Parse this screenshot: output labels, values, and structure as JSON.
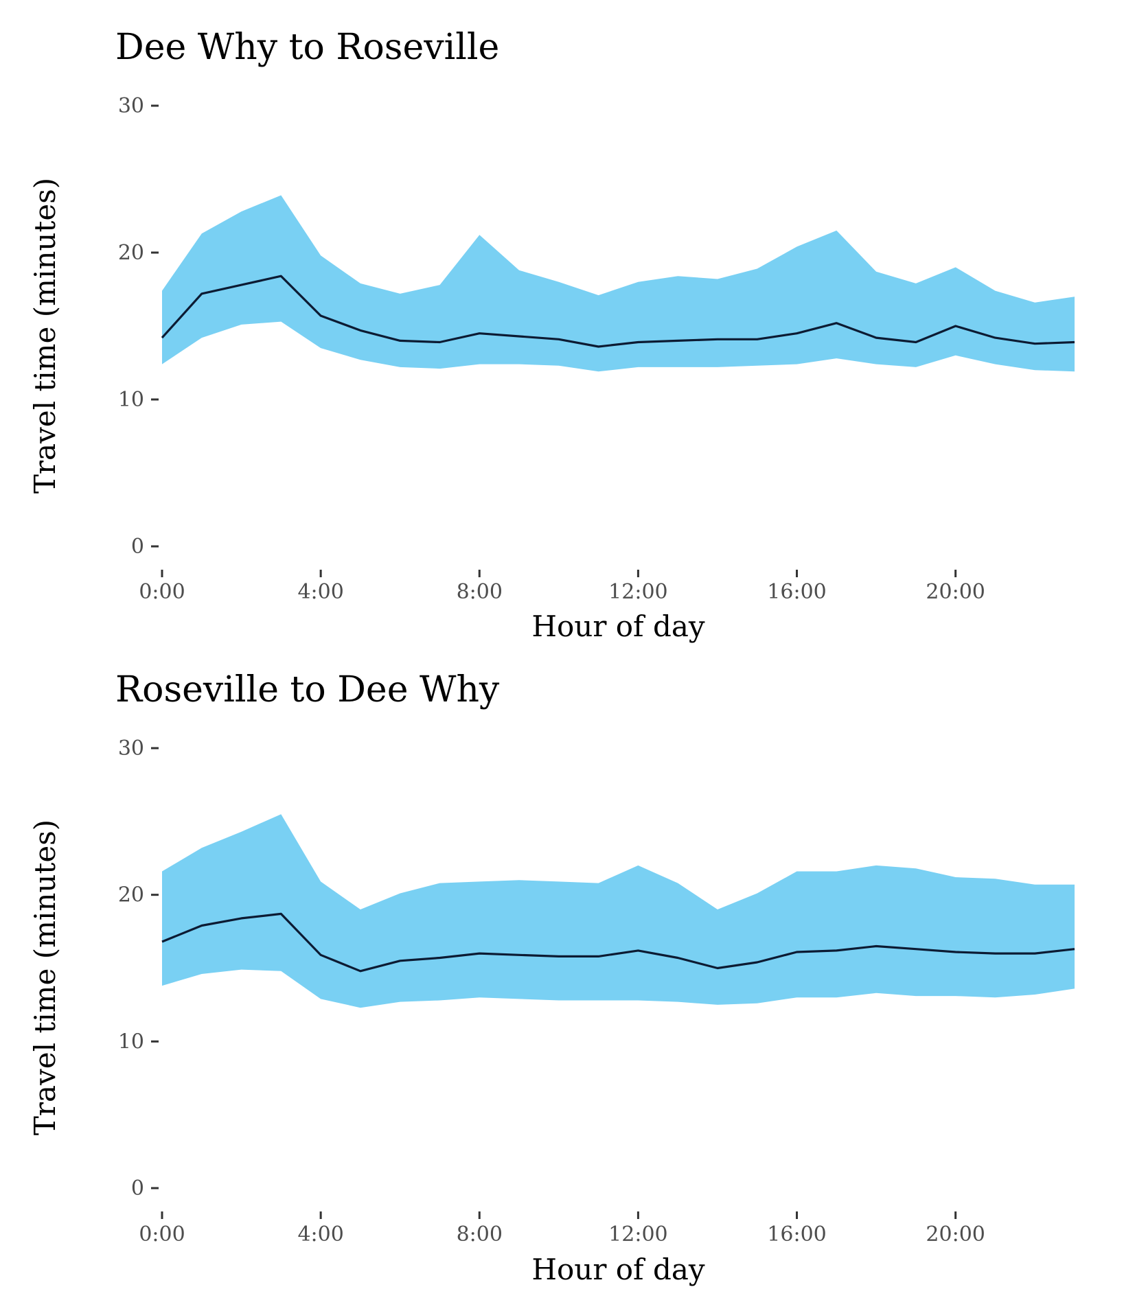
{
  "chart_data": [
    {
      "type": "area",
      "title": "Dee Why to Roseville",
      "xlabel": "Hour of day",
      "ylabel": "Travel time (minutes)",
      "x": [
        0,
        1,
        2,
        3,
        4,
        5,
        6,
        7,
        8,
        9,
        10,
        11,
        12,
        13,
        14,
        15,
        16,
        17,
        18,
        19,
        20,
        21,
        22,
        23
      ],
      "x_ticks": [
        {
          "value": 0,
          "label": "0:00"
        },
        {
          "value": 4,
          "label": "4:00"
        },
        {
          "value": 8,
          "label": "8:00"
        },
        {
          "value": 12,
          "label": "12:00"
        },
        {
          "value": 16,
          "label": "16:00"
        },
        {
          "value": 20,
          "label": "20:00"
        }
      ],
      "y_ticks": [
        {
          "value": 0,
          "label": "0"
        },
        {
          "value": 10,
          "label": "10"
        },
        {
          "value": 20,
          "label": "20"
        },
        {
          "value": 30,
          "label": "30"
        }
      ],
      "xlim": [
        0,
        23
      ],
      "ylim": [
        0,
        30
      ],
      "grid": false,
      "series": [
        {
          "role": "median",
          "values": [
            14.2,
            17.2,
            17.8,
            18.4,
            15.7,
            14.7,
            14.0,
            13.9,
            14.5,
            14.3,
            14.1,
            13.6,
            13.9,
            14.0,
            14.1,
            14.1,
            14.5,
            15.2,
            14.2,
            13.9,
            15.0,
            14.2,
            13.8,
            13.9
          ]
        },
        {
          "role": "upper",
          "values": [
            17.4,
            21.3,
            22.8,
            23.9,
            19.8,
            17.9,
            17.2,
            17.8,
            21.2,
            18.8,
            18.0,
            17.1,
            18.0,
            18.4,
            18.2,
            18.9,
            20.4,
            21.5,
            18.7,
            17.9,
            19.0,
            17.4,
            16.6,
            17.0
          ]
        },
        {
          "role": "lower",
          "values": [
            12.4,
            14.2,
            15.1,
            15.3,
            13.5,
            12.7,
            12.2,
            12.1,
            12.4,
            12.4,
            12.3,
            11.9,
            12.2,
            12.2,
            12.2,
            12.3,
            12.4,
            12.8,
            12.4,
            12.2,
            13.0,
            12.4,
            12.0,
            11.9
          ]
        }
      ],
      "colors": {
        "band": "#79d0f3",
        "line": "#0c1b33"
      }
    },
    {
      "type": "area",
      "title": "Roseville to Dee Why",
      "xlabel": "Hour of day",
      "ylabel": "Travel time (minutes)",
      "x": [
        0,
        1,
        2,
        3,
        4,
        5,
        6,
        7,
        8,
        9,
        10,
        11,
        12,
        13,
        14,
        15,
        16,
        17,
        18,
        19,
        20,
        21,
        22,
        23
      ],
      "x_ticks": [
        {
          "value": 0,
          "label": "0:00"
        },
        {
          "value": 4,
          "label": "4:00"
        },
        {
          "value": 8,
          "label": "8:00"
        },
        {
          "value": 12,
          "label": "12:00"
        },
        {
          "value": 16,
          "label": "16:00"
        },
        {
          "value": 20,
          "label": "20:00"
        }
      ],
      "y_ticks": [
        {
          "value": 0,
          "label": "0"
        },
        {
          "value": 10,
          "label": "10"
        },
        {
          "value": 20,
          "label": "20"
        },
        {
          "value": 30,
          "label": "30"
        }
      ],
      "xlim": [
        0,
        23
      ],
      "ylim": [
        0,
        30
      ],
      "grid": false,
      "series": [
        {
          "role": "median",
          "values": [
            16.8,
            17.9,
            18.4,
            18.7,
            15.9,
            14.8,
            15.5,
            15.7,
            16.0,
            15.9,
            15.8,
            15.8,
            16.2,
            15.7,
            15.0,
            15.4,
            16.1,
            16.2,
            16.5,
            16.3,
            16.1,
            16.0,
            16.0,
            16.3
          ]
        },
        {
          "role": "upper",
          "values": [
            21.6,
            23.2,
            24.3,
            25.5,
            20.9,
            19.0,
            20.1,
            20.8,
            20.9,
            21.0,
            20.9,
            20.8,
            22.0,
            20.8,
            19.0,
            20.1,
            21.6,
            21.6,
            22.0,
            21.8,
            21.2,
            21.1,
            20.7,
            20.7
          ]
        },
        {
          "role": "lower",
          "values": [
            13.8,
            14.6,
            14.9,
            14.8,
            12.9,
            12.3,
            12.7,
            12.8,
            13.0,
            12.9,
            12.8,
            12.8,
            12.8,
            12.7,
            12.5,
            12.6,
            13.0,
            13.0,
            13.3,
            13.1,
            13.1,
            13.0,
            13.2,
            13.6
          ]
        }
      ],
      "colors": {
        "band": "#79d0f3",
        "line": "#0c1b33"
      }
    }
  ]
}
